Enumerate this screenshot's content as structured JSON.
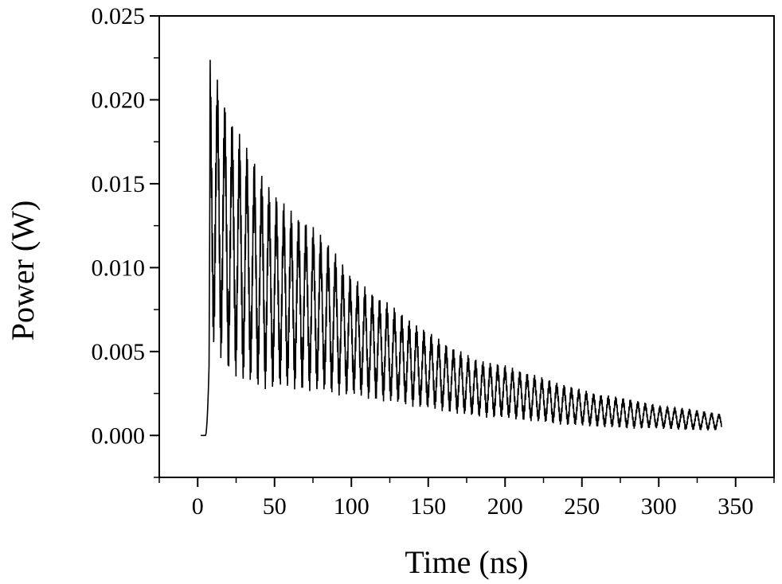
{
  "chart_data": {
    "type": "line",
    "title": "",
    "xlabel": "Time (ns)",
    "ylabel": "Power (W)",
    "xlim": [
      -25,
      375
    ],
    "ylim": [
      -0.0025,
      0.025
    ],
    "xticks": [
      0,
      50,
      100,
      150,
      200,
      250,
      300,
      350
    ],
    "yticks": [
      0.0,
      0.005,
      0.01,
      0.015,
      0.02,
      0.025
    ],
    "xtick_labels": [
      "0",
      "50",
      "100",
      "150",
      "200",
      "250",
      "300",
      "350"
    ],
    "ytick_labels": [
      "0.000",
      "0.005",
      "0.010",
      "0.015",
      "0.020",
      "0.025"
    ],
    "grid": false,
    "legend": "none",
    "series": [
      {
        "color": "#000000",
        "description_points": {
          "baseline": {
            "x": [
              2,
              5
            ],
            "y": [
              0.0,
              0.0
            ]
          },
          "rise": {
            "x": [
              5,
              8
            ],
            "y": [
              0.0,
              0.0225
            ]
          },
          "oscillation_period_ns": 4.8,
          "upper_envelope": {
            "x": [
              8,
              20,
              30,
              40,
              50,
              60,
              70,
              80,
              90,
              100,
              120,
              140,
              160,
              180,
              200,
              220,
              240,
              260,
              280,
              300,
              320,
              340
            ],
            "y": [
              0.0225,
              0.0195,
              0.0175,
              0.016,
              0.0145,
              0.0135,
              0.013,
              0.012,
              0.011,
              0.0095,
              0.0082,
              0.0068,
              0.0056,
              0.0046,
              0.0042,
              0.0036,
              0.003,
              0.0025,
              0.0022,
              0.0018,
              0.0016,
              0.0013
            ]
          },
          "lower_envelope": {
            "x": [
              8,
              20,
              30,
              40,
              50,
              60,
              70,
              80,
              90,
              100,
              120,
              140,
              160,
              180,
              200,
              220,
              240,
              260,
              280,
              300,
              320,
              340
            ],
            "y": [
              0.0055,
              0.0038,
              0.003,
              0.0028,
              0.0027,
              0.0027,
              0.0026,
              0.0025,
              0.0024,
              0.0023,
              0.002,
              0.0017,
              0.0014,
              0.0011,
              0.001,
              0.0008,
              0.0006,
              0.0005,
              0.0004,
              0.0004,
              0.0003,
              0.0003
            ]
          }
        }
      }
    ]
  }
}
